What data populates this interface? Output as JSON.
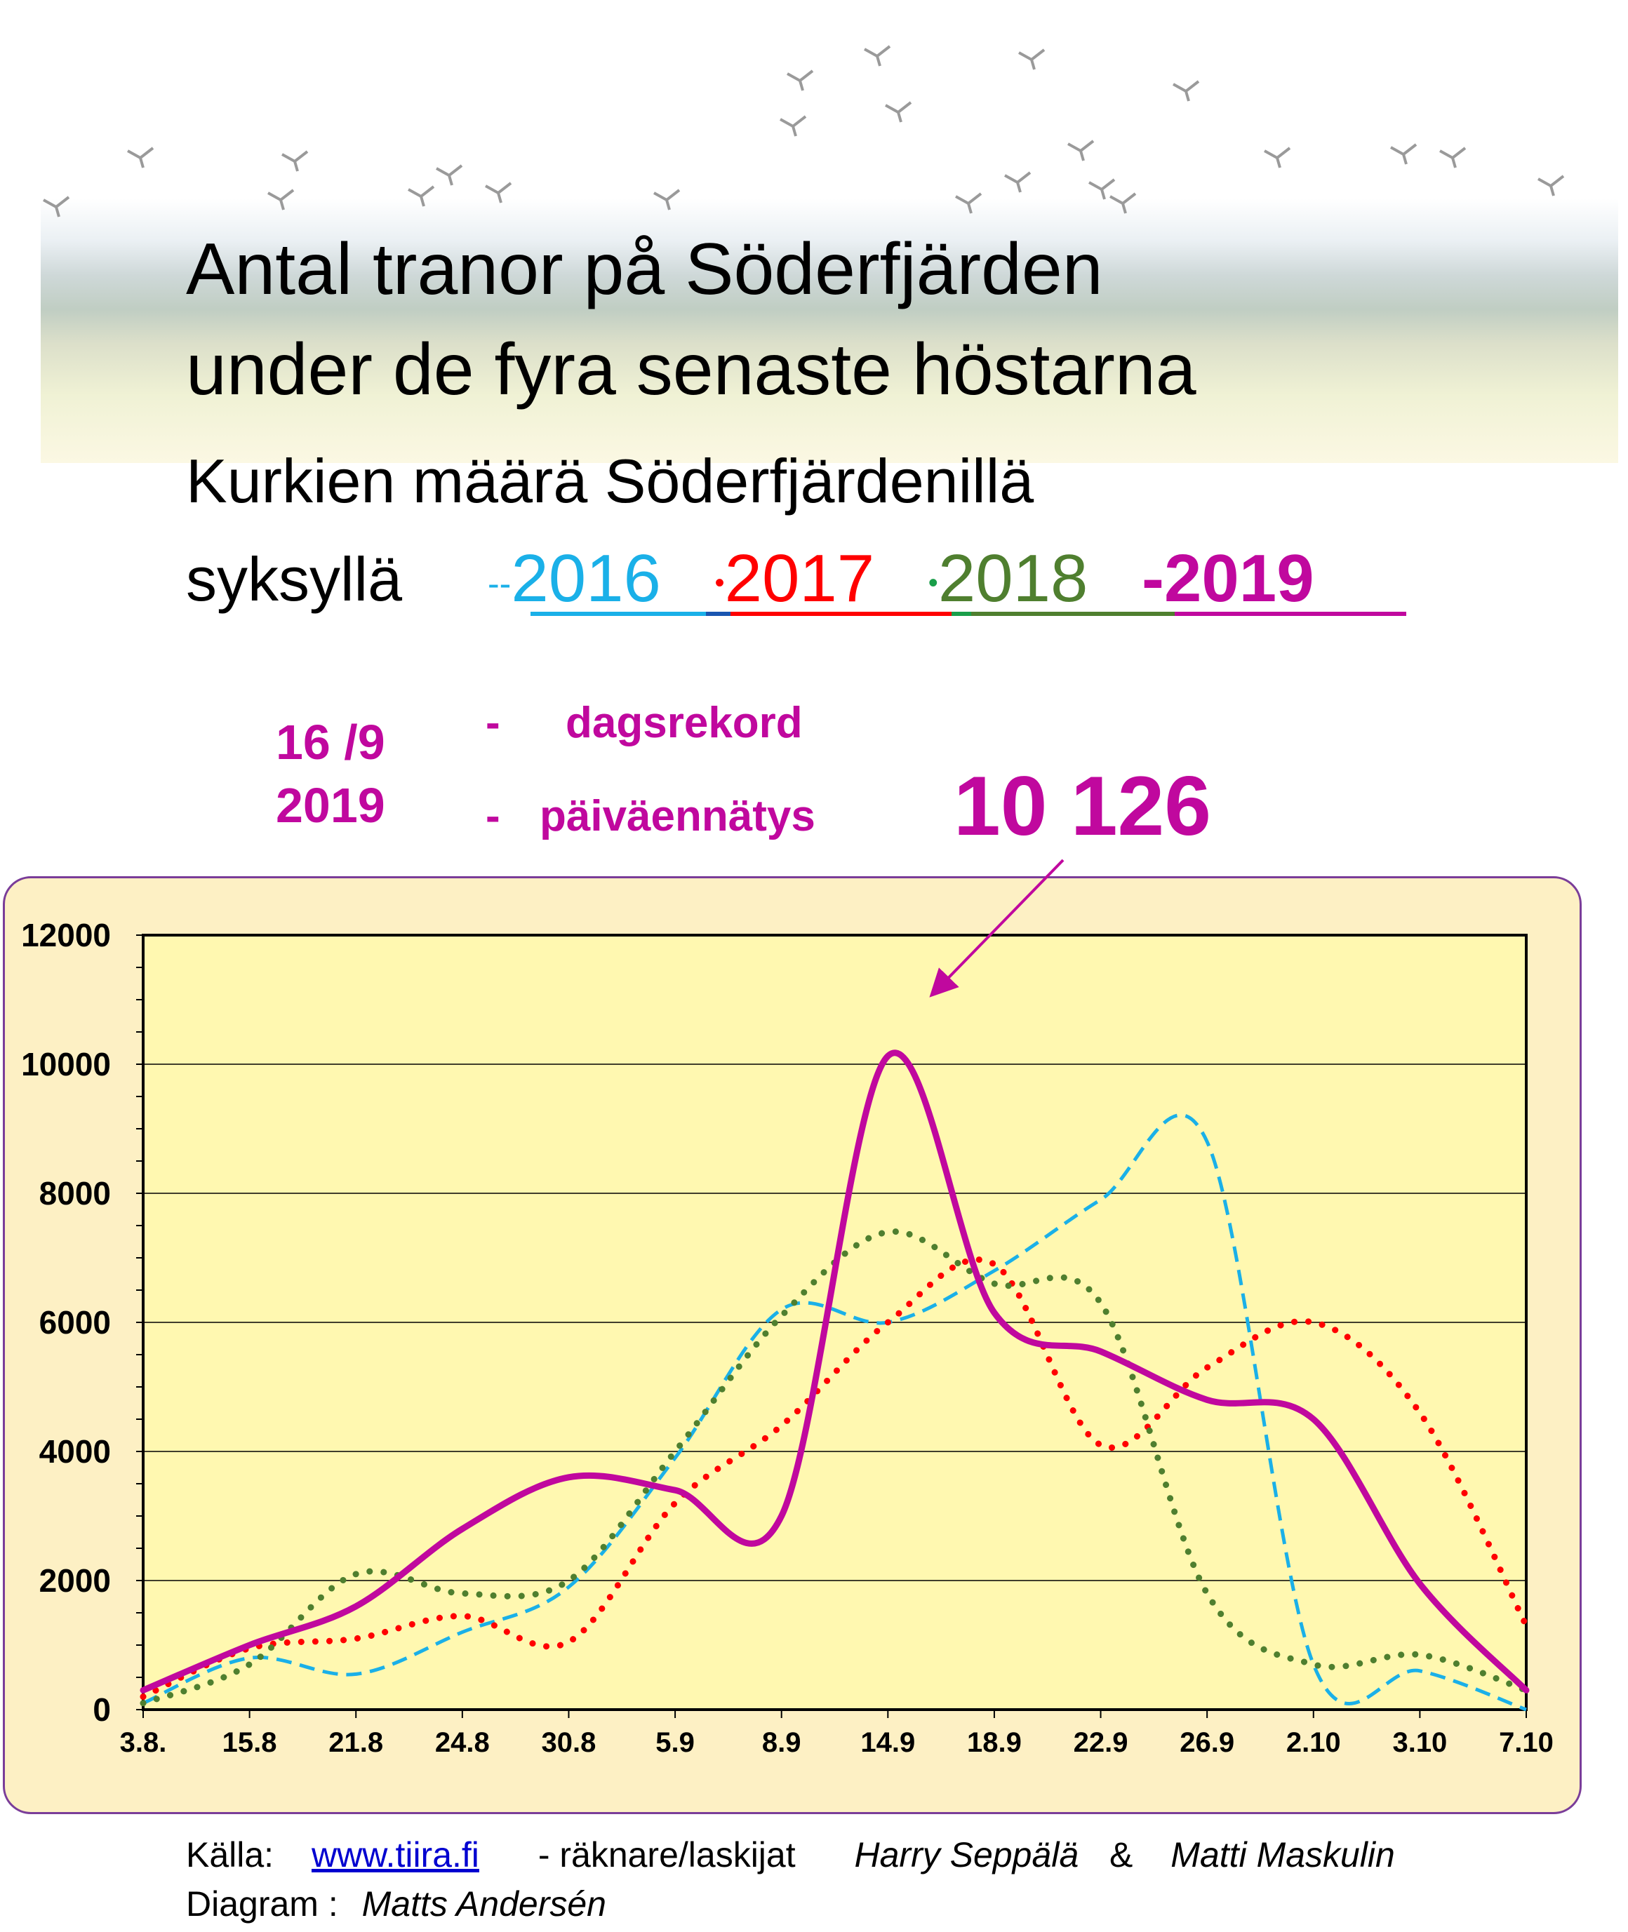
{
  "header": {
    "title_line1": "Antal tranor på Söderfjärden",
    "title_line2": "under de fyra senaste höstarna",
    "subtitle_line1": "Kurkien määrä Söderfjärdenillä",
    "subtitle_line2": "syksyllä"
  },
  "record": {
    "date_line1": "16 /9",
    "date_line2": "2019",
    "dash1": "-",
    "label_sv": "dagsrekord",
    "dash2": "-",
    "label_fi": "päiväennätys",
    "value": "10 126"
  },
  "footer": {
    "source_label": "Källa:",
    "source_link": "www.tiira.fi",
    "counters_label": "- räknare/laskijat",
    "counter1": "Harry Seppälä",
    "amp": "&",
    "counter2": "Matti Maskulin",
    "diagram_label": "Diagram :",
    "diagram_author": "Matts Andersén"
  },
  "chart_data": {
    "type": "line",
    "title": "Antal tranor på Söderfjärden under de fyra senaste höstarna",
    "xlabel": "",
    "ylabel": "",
    "categories": [
      "3.8.",
      "15.8",
      "21.8",
      "24.8",
      "30.8",
      "5.9",
      "8.9",
      "14.9",
      "18.9",
      "22.9",
      "26.9",
      "2.10",
      "3.10",
      "7.10"
    ],
    "ylim": [
      0,
      12000
    ],
    "yticks": [
      "0",
      "2000",
      "4000",
      "6000",
      "8000",
      "10000",
      "12000"
    ],
    "grid": true,
    "legend_position": "top",
    "series": [
      {
        "name": "2016",
        "color": "#1ab0e8",
        "style": "dashed",
        "values": [
          100,
          800,
          550,
          1200,
          1900,
          3900,
          6200,
          6000,
          6800,
          7900,
          8800,
          700,
          600,
          0
        ]
      },
      {
        "name": "2017",
        "color": "#ff0000",
        "style": "dotted",
        "values": [
          200,
          950,
          1100,
          1450,
          1050,
          3200,
          4400,
          6000,
          6900,
          4100,
          5300,
          6000,
          4600,
          1300
        ]
      },
      {
        "name": "2018",
        "color": "#4f7f2f",
        "style": "dotted",
        "values": [
          100,
          700,
          2100,
          1800,
          2000,
          4000,
          6100,
          7400,
          6600,
          6300,
          1800,
          700,
          850,
          300
        ]
      },
      {
        "name": "2019",
        "color": "#c0089e",
        "style": "solid",
        "values": [
          300,
          1000,
          1600,
          2800,
          3600,
          3400,
          3000,
          10126,
          6150,
          5550,
          4800,
          4500,
          1950,
          300
        ]
      }
    ]
  }
}
